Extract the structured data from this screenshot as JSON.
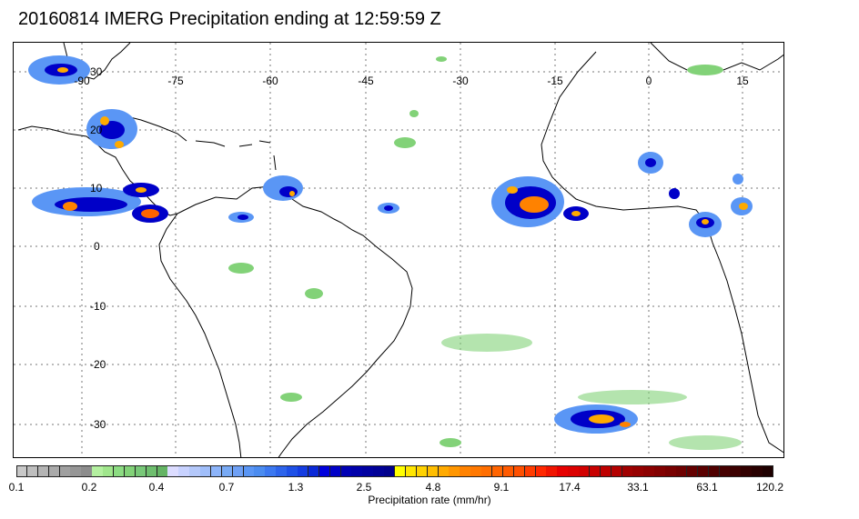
{
  "title": "20160814 IMERG Precipitation ending at 12:59:59 Z",
  "map": {
    "longitude_labels": [
      "-90",
      "-75",
      "-60",
      "-45",
      "-30",
      "-15",
      "0",
      "15"
    ],
    "latitude_labels": [
      "30",
      "20",
      "10",
      "0",
      "-10",
      "-20",
      "-30"
    ]
  },
  "colorbar": {
    "title": "Precipitation rate (mm/hr)",
    "tick_labels": [
      "0.1",
      "0.2",
      "0.4",
      "0.7",
      "1.3",
      "2.5",
      "4.8",
      "9.1",
      "17.4",
      "33.1",
      "63.1",
      "120.2"
    ],
    "colors": [
      "#c8c8c8",
      "#bebebe",
      "#b4b4b4",
      "#aaaaaa",
      "#a0a0a0",
      "#969696",
      "#8c8c8c",
      "#b4f0a0",
      "#a0e68c",
      "#8cdc82",
      "#82d278",
      "#78c878",
      "#6ebe6e",
      "#64b464",
      "#dcdcff",
      "#c8d2ff",
      "#b4c8fa",
      "#a0befa",
      "#8cb4fa",
      "#78aaf5",
      "#6ea0f5",
      "#5a96f5",
      "#4b8cf0",
      "#3c78f0",
      "#2d64eb",
      "#1e50e6",
      "#143ce1",
      "#0a28d7",
      "#0000dc",
      "#0000c8",
      "#0000b4",
      "#0000aa",
      "#0000a0",
      "#000096",
      "#00008c",
      "#ffff00",
      "#ffe600",
      "#ffd200",
      "#ffbe00",
      "#ffaa00",
      "#ff9600",
      "#ff8200",
      "#ff7800",
      "#ff6e00",
      "#ff6400",
      "#ff5a00",
      "#ff5000",
      "#ff3c00",
      "#ff2800",
      "#f01400",
      "#e60000",
      "#dc0000",
      "#d20000",
      "#c80000",
      "#be0000",
      "#b40000",
      "#a00000",
      "#960000",
      "#8c0000",
      "#820000",
      "#780000",
      "#6e0000",
      "#640000",
      "#5a0000",
      "#500000",
      "#460000",
      "#3c0000",
      "#320000",
      "#280000",
      "#1e0000"
    ]
  }
}
